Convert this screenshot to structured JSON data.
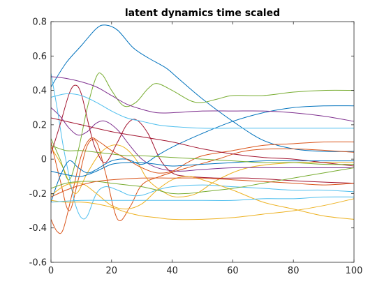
{
  "chart_data": {
    "type": "line",
    "title": "latent dynamics time scaled",
    "xlabel": "",
    "ylabel": "",
    "xlim": [
      0,
      100
    ],
    "ylim": [
      -0.6,
      0.8
    ],
    "xticks": [
      0,
      20,
      40,
      60,
      80,
      100
    ],
    "yticks": [
      -0.6,
      -0.4,
      -0.2,
      0,
      0.2,
      0.4,
      0.6,
      0.8
    ],
    "grid": false,
    "legend": "none",
    "series": [
      {
        "color": "#0072bd",
        "points": [
          [
            0,
            0.42
          ],
          [
            5,
            0.56
          ],
          [
            10,
            0.66
          ],
          [
            15,
            0.76
          ],
          [
            18,
            0.78
          ],
          [
            22,
            0.75
          ],
          [
            27,
            0.65
          ],
          [
            32,
            0.59
          ],
          [
            38,
            0.53
          ],
          [
            42,
            0.47
          ],
          [
            50,
            0.35
          ],
          [
            60,
            0.22
          ],
          [
            70,
            0.11
          ],
          [
            80,
            0.06
          ],
          [
            90,
            0.045
          ],
          [
            100,
            0.045
          ]
        ]
      },
      {
        "color": "#d95319",
        "points": [
          [
            0,
            0.1
          ],
          [
            3,
            -0.12
          ],
          [
            6,
            -0.3
          ],
          [
            9,
            -0.12
          ],
          [
            12,
            0.08
          ],
          [
            15,
            0.1
          ],
          [
            18,
            -0.08
          ],
          [
            22,
            -0.35
          ],
          [
            26,
            -0.28
          ],
          [
            30,
            -0.15
          ],
          [
            36,
            -0.1
          ],
          [
            45,
            -0.05
          ],
          [
            55,
            0.0
          ],
          [
            65,
            0.05
          ],
          [
            80,
            0.06
          ],
          [
            100,
            0.04
          ]
        ]
      },
      {
        "color": "#edb120",
        "points": [
          [
            0,
            0.07
          ],
          [
            4,
            -0.05
          ],
          [
            8,
            -0.2
          ],
          [
            12,
            -0.08
          ],
          [
            16,
            0.03
          ],
          [
            20,
            0.08
          ],
          [
            24,
            0.07
          ],
          [
            28,
            0.0
          ],
          [
            32,
            -0.12
          ],
          [
            38,
            -0.2
          ],
          [
            42,
            -0.22
          ],
          [
            48,
            -0.2
          ],
          [
            55,
            -0.12
          ],
          [
            65,
            -0.05
          ],
          [
            80,
            -0.02
          ],
          [
            100,
            -0.02
          ]
        ]
      },
      {
        "color": "#7e2f8e",
        "points": [
          [
            0,
            0.3
          ],
          [
            3,
            0.25
          ],
          [
            6,
            0.18
          ],
          [
            9,
            0.14
          ],
          [
            12,
            0.16
          ],
          [
            15,
            0.21
          ],
          [
            18,
            0.22
          ],
          [
            22,
            0.17
          ],
          [
            26,
            0.08
          ],
          [
            30,
            0.0
          ],
          [
            35,
            -0.05
          ],
          [
            42,
            -0.07
          ],
          [
            50,
            -0.06
          ],
          [
            60,
            -0.05
          ],
          [
            75,
            -0.05
          ],
          [
            90,
            -0.05
          ],
          [
            100,
            -0.05
          ]
        ]
      },
      {
        "color": "#77ac30",
        "points": [
          [
            0,
            0.12
          ],
          [
            3,
            0.0
          ],
          [
            6,
            -0.12
          ],
          [
            9,
            0.05
          ],
          [
            12,
            0.3
          ],
          [
            15,
            0.48
          ],
          [
            17,
            0.49
          ],
          [
            20,
            0.4
          ],
          [
            24,
            0.31
          ],
          [
            28,
            0.33
          ],
          [
            32,
            0.41
          ],
          [
            35,
            0.44
          ],
          [
            40,
            0.4
          ],
          [
            46,
            0.34
          ],
          [
            50,
            0.33
          ],
          [
            55,
            0.35
          ],
          [
            60,
            0.37
          ],
          [
            70,
            0.37
          ],
          [
            80,
            0.39
          ],
          [
            90,
            0.4
          ],
          [
            100,
            0.4
          ]
        ]
      },
      {
        "color": "#4dbeee",
        "points": [
          [
            0,
            0.5
          ],
          [
            2,
            0.3
          ],
          [
            4,
            0.08
          ],
          [
            6,
            -0.1
          ],
          [
            8,
            -0.26
          ],
          [
            10,
            -0.34
          ],
          [
            12,
            -0.33
          ],
          [
            15,
            -0.2
          ],
          [
            18,
            -0.16
          ],
          [
            22,
            -0.18
          ],
          [
            26,
            -0.21
          ],
          [
            30,
            -0.21
          ],
          [
            35,
            -0.18
          ],
          [
            40,
            -0.16
          ],
          [
            50,
            -0.15
          ],
          [
            60,
            -0.16
          ],
          [
            70,
            -0.17
          ],
          [
            80,
            -0.18
          ],
          [
            90,
            -0.18
          ],
          [
            100,
            -0.19
          ]
        ]
      },
      {
        "color": "#a2142f",
        "points": [
          [
            0,
            0.03
          ],
          [
            3,
            0.2
          ],
          [
            6,
            0.38
          ],
          [
            8,
            0.43
          ],
          [
            10,
            0.38
          ],
          [
            13,
            0.16
          ],
          [
            15,
            0.05
          ],
          [
            18,
            -0.02
          ],
          [
            22,
            0.1
          ],
          [
            25,
            0.2
          ],
          [
            28,
            0.23
          ],
          [
            32,
            0.15
          ],
          [
            36,
            0.0
          ],
          [
            40,
            -0.08
          ],
          [
            45,
            -0.1
          ],
          [
            55,
            -0.11
          ],
          [
            65,
            -0.11
          ],
          [
            75,
            -0.12
          ],
          [
            85,
            -0.13
          ],
          [
            100,
            -0.14
          ]
        ]
      },
      {
        "color": "#0072bd",
        "points": [
          [
            0,
            -0.25
          ],
          [
            3,
            -0.1
          ],
          [
            6,
            -0.01
          ],
          [
            9,
            -0.05
          ],
          [
            12,
            -0.08
          ],
          [
            15,
            -0.06
          ],
          [
            20,
            -0.01
          ],
          [
            25,
            0.0
          ],
          [
            30,
            -0.03
          ],
          [
            35,
            0.02
          ],
          [
            40,
            0.07
          ],
          [
            50,
            0.15
          ],
          [
            60,
            0.22
          ],
          [
            70,
            0.27
          ],
          [
            80,
            0.3
          ],
          [
            90,
            0.31
          ],
          [
            100,
            0.31
          ]
        ]
      },
      {
        "color": "#d95319",
        "points": [
          [
            0,
            -0.35
          ],
          [
            2,
            -0.42
          ],
          [
            4,
            -0.41
          ],
          [
            7,
            -0.2
          ],
          [
            10,
            0.02
          ],
          [
            13,
            0.12
          ],
          [
            16,
            0.1
          ],
          [
            20,
            0.05
          ],
          [
            25,
            0.0
          ],
          [
            30,
            -0.05
          ],
          [
            35,
            -0.08
          ],
          [
            40,
            -0.07
          ],
          [
            45,
            -0.02
          ],
          [
            50,
            0.02
          ],
          [
            60,
            0.05
          ],
          [
            70,
            0.08
          ],
          [
            80,
            0.09
          ],
          [
            90,
            0.1
          ],
          [
            100,
            0.1
          ]
        ]
      },
      {
        "color": "#edb120",
        "points": [
          [
            0,
            -0.21
          ],
          [
            5,
            -0.15
          ],
          [
            10,
            -0.14
          ],
          [
            15,
            -0.2
          ],
          [
            20,
            -0.27
          ],
          [
            25,
            -0.29
          ],
          [
            30,
            -0.26
          ],
          [
            35,
            -0.18
          ],
          [
            40,
            -0.12
          ],
          [
            45,
            -0.1
          ],
          [
            50,
            -0.12
          ],
          [
            60,
            -0.18
          ],
          [
            70,
            -0.25
          ],
          [
            80,
            -0.29
          ],
          [
            90,
            -0.33
          ],
          [
            100,
            -0.35
          ]
        ]
      },
      {
        "color": "#7e2f8e",
        "points": [
          [
            0,
            0.48
          ],
          [
            5,
            0.47
          ],
          [
            10,
            0.45
          ],
          [
            15,
            0.42
          ],
          [
            20,
            0.37
          ],
          [
            25,
            0.32
          ],
          [
            30,
            0.29
          ],
          [
            35,
            0.27
          ],
          [
            40,
            0.27
          ],
          [
            50,
            0.28
          ],
          [
            60,
            0.28
          ],
          [
            70,
            0.28
          ],
          [
            80,
            0.27
          ],
          [
            90,
            0.25
          ],
          [
            100,
            0.22
          ]
        ]
      },
      {
        "color": "#77ac30",
        "points": [
          [
            0,
            -0.17
          ],
          [
            5,
            -0.14
          ],
          [
            10,
            -0.13
          ],
          [
            15,
            -0.13
          ],
          [
            20,
            -0.14
          ],
          [
            25,
            -0.15
          ],
          [
            30,
            -0.16
          ],
          [
            35,
            -0.18
          ],
          [
            40,
            -0.2
          ],
          [
            45,
            -0.2
          ],
          [
            50,
            -0.19
          ],
          [
            60,
            -0.17
          ],
          [
            70,
            -0.14
          ],
          [
            80,
            -0.11
          ],
          [
            90,
            -0.08
          ],
          [
            100,
            -0.05
          ]
        ]
      },
      {
        "color": "#4dbeee",
        "points": [
          [
            0,
            0.36
          ],
          [
            5,
            0.38
          ],
          [
            10,
            0.37
          ],
          [
            15,
            0.33
          ],
          [
            20,
            0.28
          ],
          [
            25,
            0.24
          ],
          [
            30,
            0.22
          ],
          [
            35,
            0.2
          ],
          [
            40,
            0.19
          ],
          [
            50,
            0.18
          ],
          [
            60,
            0.18
          ],
          [
            70,
            0.18
          ],
          [
            80,
            0.18
          ],
          [
            90,
            0.18
          ],
          [
            100,
            0.18
          ]
        ]
      },
      {
        "color": "#a2142f",
        "points": [
          [
            0,
            0.24
          ],
          [
            10,
            0.2
          ],
          [
            20,
            0.16
          ],
          [
            30,
            0.13
          ],
          [
            40,
            0.1
          ],
          [
            50,
            0.06
          ],
          [
            60,
            0.03
          ],
          [
            70,
            0.01
          ],
          [
            80,
            0.0
          ],
          [
            90,
            -0.02
          ],
          [
            100,
            -0.04
          ]
        ]
      },
      {
        "color": "#0072bd",
        "points": [
          [
            0,
            -0.07
          ],
          [
            5,
            -0.09
          ],
          [
            10,
            -0.1
          ],
          [
            15,
            -0.07
          ],
          [
            20,
            -0.03
          ],
          [
            25,
            -0.02
          ],
          [
            30,
            -0.02
          ],
          [
            35,
            -0.03
          ],
          [
            40,
            -0.04
          ],
          [
            50,
            -0.03
          ],
          [
            60,
            -0.02
          ],
          [
            70,
            -0.01
          ],
          [
            80,
            -0.01
          ],
          [
            90,
            -0.01
          ],
          [
            100,
            -0.01
          ]
        ]
      },
      {
        "color": "#d95319",
        "points": [
          [
            0,
            -0.22
          ],
          [
            5,
            -0.18
          ],
          [
            10,
            -0.15
          ],
          [
            15,
            -0.13
          ],
          [
            20,
            -0.12
          ],
          [
            30,
            -0.11
          ],
          [
            40,
            -0.11
          ],
          [
            50,
            -0.11
          ],
          [
            60,
            -0.12
          ],
          [
            70,
            -0.13
          ],
          [
            80,
            -0.14
          ],
          [
            90,
            -0.15
          ],
          [
            100,
            -0.14
          ]
        ]
      },
      {
        "color": "#edb120",
        "points": [
          [
            0,
            -0.24
          ],
          [
            5,
            -0.25
          ],
          [
            10,
            -0.25
          ],
          [
            15,
            -0.26
          ],
          [
            20,
            -0.28
          ],
          [
            25,
            -0.31
          ],
          [
            30,
            -0.33
          ],
          [
            35,
            -0.34
          ],
          [
            40,
            -0.35
          ],
          [
            50,
            -0.35
          ],
          [
            60,
            -0.34
          ],
          [
            70,
            -0.32
          ],
          [
            80,
            -0.3
          ],
          [
            90,
            -0.27
          ],
          [
            100,
            -0.23
          ]
        ]
      },
      {
        "color": "#77ac30",
        "points": [
          [
            0,
            0.08
          ],
          [
            5,
            0.05
          ],
          [
            10,
            0.05
          ],
          [
            15,
            0.04
          ],
          [
            20,
            0.03
          ],
          [
            25,
            0.02
          ],
          [
            30,
            0.02
          ],
          [
            40,
            0.01
          ],
          [
            50,
            0.0
          ],
          [
            60,
            -0.01
          ],
          [
            70,
            -0.02
          ],
          [
            80,
            -0.02
          ],
          [
            90,
            -0.03
          ],
          [
            100,
            -0.03
          ]
        ]
      },
      {
        "color": "#4dbeee",
        "points": [
          [
            0,
            -0.25
          ],
          [
            10,
            -0.24
          ],
          [
            20,
            -0.24
          ],
          [
            30,
            -0.24
          ],
          [
            40,
            -0.24
          ],
          [
            50,
            -0.24
          ],
          [
            60,
            -0.24
          ],
          [
            70,
            -0.23
          ],
          [
            80,
            -0.23
          ],
          [
            90,
            -0.22
          ],
          [
            100,
            -0.22
          ]
        ]
      }
    ]
  }
}
